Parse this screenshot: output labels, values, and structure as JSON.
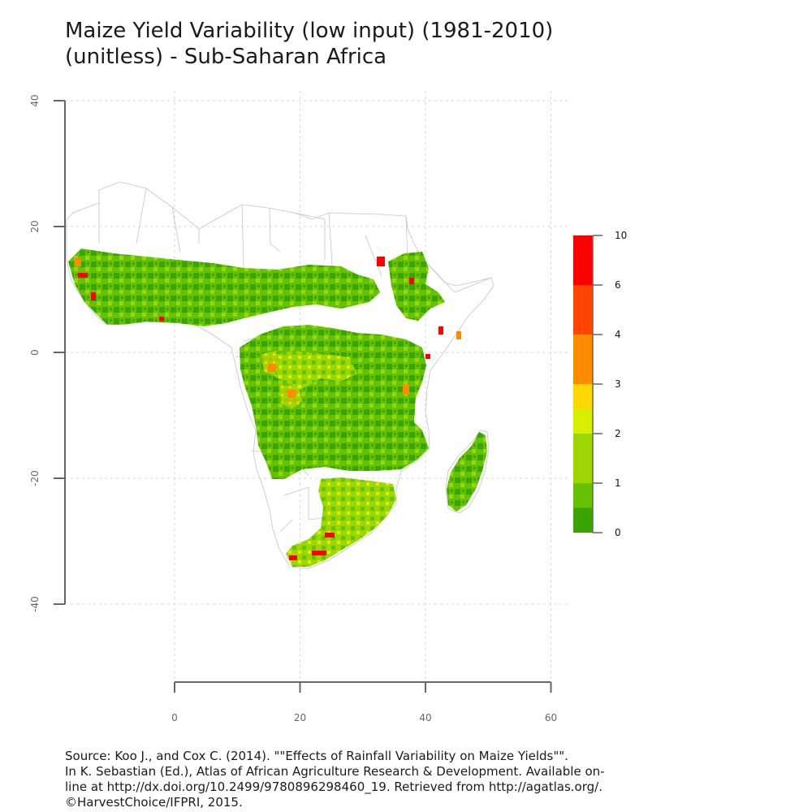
{
  "title": {
    "line1": "Maize Yield Variability (low input) (1981-2010)",
    "line2": "(unitless) - Sub-Saharan Africa"
  },
  "chart_data": {
    "type": "heatmap",
    "subject": "Maize yield variability (low input), 1981-2010, unitless",
    "region": "Sub-Saharan Africa",
    "x_axis": {
      "ticks": [
        0,
        20,
        40,
        60
      ],
      "range": [
        -20,
        60
      ]
    },
    "y_axis": {
      "ticks": [
        40,
        20,
        0,
        -20,
        -40
      ],
      "range": [
        -52,
        40
      ]
    },
    "grid": true,
    "legend": {
      "position": "right",
      "ticks": [
        0,
        1,
        2,
        3,
        4,
        6,
        10
      ],
      "classes": [
        {
          "from": 0,
          "to": 0.5,
          "color": "#3aa500"
        },
        {
          "from": 0.5,
          "to": 1,
          "color": "#66c200"
        },
        {
          "from": 1,
          "to": 2,
          "color": "#9dd600"
        },
        {
          "from": 2,
          "to": 2.5,
          "color": "#d8f000"
        },
        {
          "from": 2.5,
          "to": 3,
          "color": "#ffd800"
        },
        {
          "from": 3,
          "to": 4,
          "color": "#ff8c00"
        },
        {
          "from": 4,
          "to": 6,
          "color": "#ff4500"
        },
        {
          "from": 6,
          "to": 10,
          "color": "#ff0000"
        }
      ]
    }
  },
  "source": {
    "line1": "Source: Koo J., and Cox C. (2014). \"\"Effects of Rainfall Variability on Maize Yields\"\".",
    "line2": "In K. Sebastian (Ed.), Atlas of African Agriculture Research & Development. Available on-",
    "line3": "line at http://dx.doi.org/10.2499/9780896298460_19. Retrieved from http://agatlas.org/.",
    "line4": "©HarvestChoice/IFPRI, 2015."
  }
}
